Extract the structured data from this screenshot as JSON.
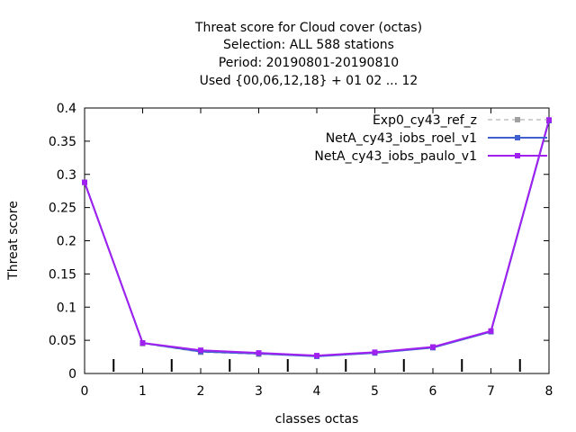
{
  "chart_data": {
    "type": "line",
    "title_lines": [
      "Threat score  for Cloud cover (octas)",
      "Selection: ALL    588 stations",
      "Period: 20190801-20190810",
      "Used {00,06,12,18} + 01 02 ... 12"
    ],
    "xlabel": "classes octas",
    "ylabel": "Threat score",
    "xlim": [
      0,
      8
    ],
    "ylim": [
      0,
      0.4
    ],
    "xticks": [
      0,
      1,
      2,
      3,
      4,
      5,
      6,
      7,
      8
    ],
    "yticks": [
      0,
      0.05,
      0.1,
      0.15,
      0.2,
      0.25,
      0.3,
      0.35,
      0.4
    ],
    "ytick_labels": [
      "0",
      "0.05",
      "0.1",
      "0.15",
      "0.2",
      "0.25",
      "0.3",
      "0.35",
      "0.4"
    ],
    "class_markers_x": [
      0.5,
      1.5,
      2.5,
      3.5,
      4.5,
      5.5,
      6.5,
      7.5
    ],
    "legend_position": "top-right",
    "grid": false,
    "x": [
      0,
      1,
      2,
      3,
      4,
      5,
      6,
      7,
      8
    ],
    "series": [
      {
        "name": "Exp0_cy43_ref_z",
        "color": "#a0a0a0",
        "dashed": true,
        "values": [
          0.288,
          0.045,
          0.032,
          0.029,
          0.026,
          0.031,
          0.039,
          0.063,
          0.381
        ]
      },
      {
        "name": "NetA_cy43_iobs_roel_v1",
        "color": "#4060d0",
        "dashed": false,
        "values": [
          0.288,
          0.046,
          0.033,
          0.03,
          0.026,
          0.031,
          0.039,
          0.063,
          0.381
        ]
      },
      {
        "name": "NetA_cy43_iobs_paulo_v1",
        "color": "#a020f0",
        "dashed": false,
        "values": [
          0.288,
          0.046,
          0.035,
          0.031,
          0.027,
          0.032,
          0.04,
          0.064,
          0.382
        ]
      }
    ]
  }
}
